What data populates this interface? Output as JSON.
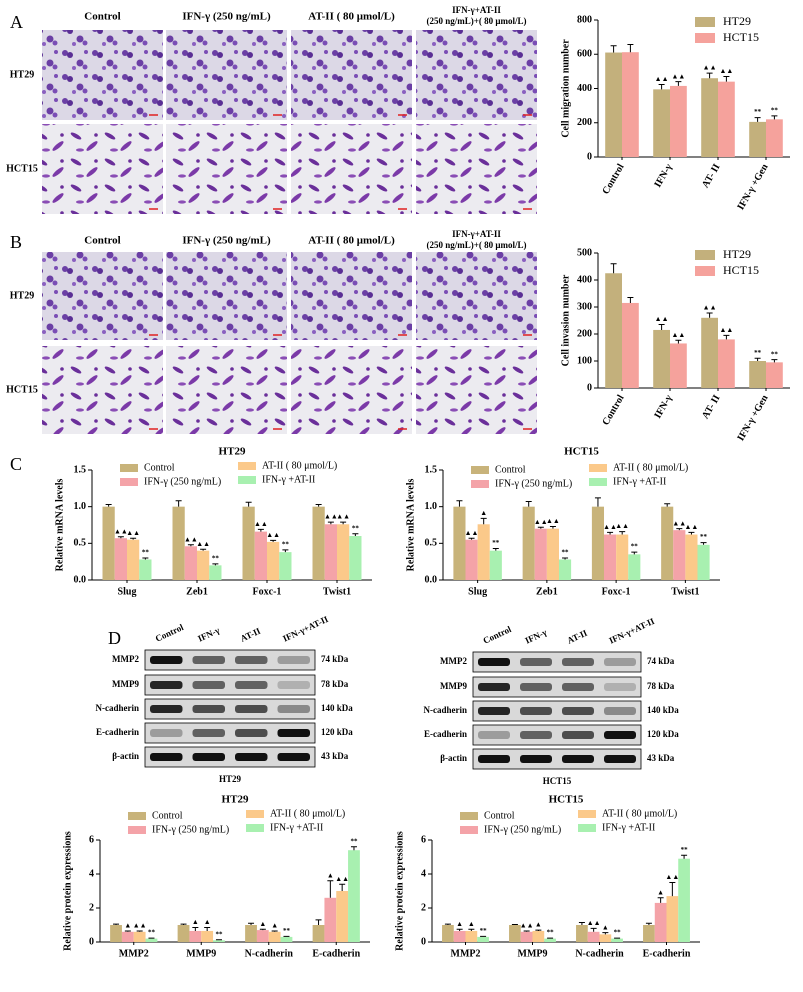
{
  "chart_data": [
    {
      "type": "bar",
      "ylabel": "Cell migration number",
      "categories": [
        "Control",
        "IFN-γ",
        "AT- II",
        "IFN-γ +Gen"
      ],
      "series": [
        {
          "name": "HT29",
          "color": "#c3b07c",
          "values": [
            610,
            395,
            460,
            205
          ],
          "errors": [
            40,
            28,
            30,
            25
          ],
          "annotations": [
            null,
            "▲▲",
            "▲▲",
            "**"
          ]
        },
        {
          "name": "HCT15",
          "color": "#f5a29c",
          "values": [
            612,
            415,
            440,
            220
          ],
          "errors": [
            45,
            25,
            30,
            20
          ],
          "annotations": [
            null,
            "▲▲",
            "▲▲",
            "**"
          ]
        }
      ],
      "ylim": [
        0,
        800
      ],
      "yticks": [
        0,
        200,
        400,
        600,
        800
      ],
      "legend": "upper right"
    },
    {
      "type": "bar",
      "ylabel": "Cell invasion number",
      "categories": [
        "Control",
        "IFN-γ",
        "AT- II",
        "IFN-γ +Gen"
      ],
      "series": [
        {
          "name": "HT29",
          "color": "#c3b07c",
          "values": [
            425,
            215,
            260,
            100
          ],
          "errors": [
            35,
            20,
            18,
            10
          ],
          "annotations": [
            null,
            "▲▲",
            "▲▲",
            "**"
          ]
        },
        {
          "name": "HCT15",
          "color": "#f5a29c",
          "values": [
            315,
            165,
            180,
            95
          ],
          "errors": [
            20,
            12,
            15,
            10
          ],
          "annotations": [
            null,
            "▲▲",
            "▲▲",
            "**"
          ]
        }
      ],
      "ylim": [
        0,
        500
      ],
      "yticks": [
        0,
        100,
        200,
        300,
        400,
        500
      ],
      "legend": "upper right"
    },
    {
      "type": "bar",
      "title": "HT29",
      "ylabel": "Relative mRNA levels",
      "categories": [
        "Slug",
        "Zeb1",
        "Foxc-1",
        "Twist1"
      ],
      "series": [
        {
          "name": "Control",
          "color": "#c8b37a",
          "values": [
            1,
            1,
            1,
            1
          ],
          "errors": [
            0.03,
            0.08,
            0.06,
            0.03
          ],
          "annotations": [
            null,
            null,
            null,
            null
          ]
        },
        {
          "name": "IFN-γ  (250 ng/mL)",
          "color": "#f4a3a8",
          "values": [
            0.57,
            0.46,
            0.66,
            0.76
          ],
          "errors": [
            0.02,
            0.02,
            0.03,
            0.03
          ],
          "annotations": [
            "▲▲",
            "▲▲",
            "▲▲",
            "▲▲"
          ]
        },
        {
          "name": "AT-II ( 80  μmol/L)",
          "color": "#fbc98a",
          "values": [
            0.55,
            0.4,
            0.52,
            0.76
          ],
          "errors": [
            0.02,
            0.02,
            0.02,
            0.03
          ],
          "annotations": [
            "▲▲",
            "▲▲",
            "▲▲",
            "▲▲"
          ]
        },
        {
          "name": "IFN-γ +AT-II",
          "color": "#a8f0b0",
          "values": [
            0.28,
            0.2,
            0.38,
            0.6
          ],
          "errors": [
            0.02,
            0.02,
            0.03,
            0.03
          ],
          "annotations": [
            "**",
            "**",
            "**",
            "**"
          ]
        }
      ],
      "ylim": [
        0,
        1.5
      ],
      "yticks": [
        {
          "value": 0,
          "label": "0.0"
        },
        0.5,
        {
          "value": 1,
          "label": "1.0"
        },
        1.5
      ],
      "legend": "top"
    },
    {
      "type": "bar",
      "title": "HCT15",
      "ylabel": "Relative mRNA levels",
      "categories": [
        "Slug",
        "Zeb1",
        "Foxc-1",
        "Twist1"
      ],
      "series": [
        {
          "name": "Control",
          "color": "#c8b37a",
          "values": [
            1,
            1,
            1,
            1
          ],
          "errors": [
            0.08,
            0.07,
            0.12,
            0.04
          ],
          "annotations": [
            null,
            null,
            null,
            null
          ]
        },
        {
          "name": "IFN-γ  (250 ng/mL)",
          "color": "#f4a3a8",
          "values": [
            0.55,
            0.7,
            0.62,
            0.68
          ],
          "errors": [
            0.02,
            0.02,
            0.03,
            0.02
          ],
          "annotations": [
            "▲▲",
            "▲▲",
            "▲▲",
            "▲▲"
          ]
        },
        {
          "name": "AT-II ( 80  μmol/L)",
          "color": "#fbc98a",
          "values": [
            0.76,
            0.7,
            0.62,
            0.62
          ],
          "errors": [
            0.08,
            0.03,
            0.04,
            0.03
          ],
          "annotations": [
            "▲",
            "▲▲",
            "▲▲",
            "▲▲"
          ]
        },
        {
          "name": "IFN-γ +AT-II",
          "color": "#a8f0b0",
          "values": [
            0.4,
            0.28,
            0.35,
            0.48
          ],
          "errors": [
            0.03,
            0.02,
            0.03,
            0.03
          ],
          "annotations": [
            "**",
            "**",
            "**",
            "**"
          ]
        }
      ],
      "ylim": [
        0,
        1.5
      ],
      "yticks": [
        {
          "value": 0,
          "label": "0.0"
        },
        0.5,
        {
          "value": 1,
          "label": "1.0"
        },
        1.5
      ],
      "legend": "top"
    },
    {
      "type": "bar",
      "title": "HT29",
      "ylabel": "Relative protein expressions",
      "categories": [
        "MMP2",
        "MMP9",
        "N-cadherin",
        "E-cadherin"
      ],
      "series": [
        {
          "name": "Control",
          "color": "#c8b37a",
          "values": [
            1,
            1,
            1,
            1
          ],
          "errors": [
            0.05,
            0.05,
            0.1,
            0.3
          ],
          "annotations": [
            null,
            null,
            null,
            null
          ]
        },
        {
          "name": "IFN-γ  (250 ng/mL)",
          "color": "#f4a3a8",
          "values": [
            0.6,
            0.65,
            0.7,
            2.6
          ],
          "errors": [
            0.05,
            0.2,
            0.05,
            1.0
          ],
          "annotations": [
            "▲",
            "▲",
            "▲",
            "▲"
          ]
        },
        {
          "name": "AT-II ( 80  μmol/L)",
          "color": "#fbc98a",
          "values": [
            0.6,
            0.65,
            0.6,
            3.0
          ],
          "errors": [
            0.05,
            0.2,
            0.05,
            0.4
          ],
          "annotations": [
            "▲▲",
            "▲",
            "▲",
            "▲▲"
          ]
        },
        {
          "name": "IFN-γ +AT-II",
          "color": "#a8f0b0",
          "values": [
            0.2,
            0.1,
            0.3,
            5.4
          ],
          "errors": [
            0.03,
            0.03,
            0.03,
            0.2
          ],
          "annotations": [
            "**",
            "**",
            "**",
            "**"
          ]
        }
      ],
      "ylim": [
        0,
        6
      ],
      "yticks": [
        0,
        2,
        4,
        6
      ],
      "legend": "top"
    },
    {
      "type": "bar",
      "title": "HCT15",
      "ylabel": "Relative protein expressions",
      "categories": [
        "MMP2",
        "MMP9",
        "N-cadherin",
        "E-cadherin"
      ],
      "series": [
        {
          "name": "Control",
          "color": "#c8b37a",
          "values": [
            1,
            1,
            1,
            1
          ],
          "errors": [
            0.05,
            0.03,
            0.15,
            0.1
          ],
          "annotations": [
            null,
            null,
            null,
            null
          ]
        },
        {
          "name": "IFN-γ  (250 ng/mL)",
          "color": "#f4a3a8",
          "values": [
            0.65,
            0.6,
            0.6,
            2.3
          ],
          "errors": [
            0.1,
            0.05,
            0.2,
            0.3
          ],
          "annotations": [
            "▲",
            "▲▲",
            "▲▲",
            "▲"
          ]
        },
        {
          "name": "AT-II ( 80  μmol/L)",
          "color": "#fbc98a",
          "values": [
            0.65,
            0.65,
            0.45,
            2.7
          ],
          "errors": [
            0.1,
            0.05,
            0.1,
            0.8
          ],
          "annotations": [
            "▲",
            "▲",
            "▲",
            "▲▲"
          ]
        },
        {
          "name": "IFN-γ +AT-II",
          "color": "#a8f0b0",
          "values": [
            0.3,
            0.2,
            0.2,
            4.9
          ],
          "errors": [
            0.03,
            0.03,
            0.03,
            0.2
          ],
          "annotations": [
            "**",
            "**",
            "**",
            "**"
          ]
        }
      ],
      "ylim": [
        0,
        6
      ],
      "yticks": [
        0,
        2,
        4,
        6
      ],
      "legend": "top"
    }
  ],
  "figure": {
    "panel_labels": [
      "A",
      "B",
      "C",
      "D"
    ],
    "migration": {
      "columns": [
        [
          "Control"
        ],
        [
          "IFN-γ (250 ng/mL)"
        ],
        [
          "AT-II ( 80  μmol/L)"
        ],
        [
          "IFN-γ+AT-II",
          "(250 ng/mL)+( 80  μmol/L)"
        ]
      ],
      "rows": [
        "HT29",
        "HCT15"
      ]
    },
    "invasion": {
      "columns": [
        [
          "Control"
        ],
        [
          "IFN-γ (250 ng/mL)"
        ],
        [
          "AT-II ( 80  μmol/L)"
        ],
        [
          "IFN-γ+AT-II",
          "(250 ng/mL)+( 80  μmol/L)"
        ]
      ],
      "rows": [
        "HT29",
        "HCT15"
      ]
    },
    "blots": [
      {
        "cell_line": "HT29",
        "lanes": [
          "Control",
          "IFN-γ",
          "AT-II",
          "IFN-γ+AT-II"
        ],
        "proteins": [
          "MMP2",
          "MMP9",
          "N-cadherin",
          "E-cadherin",
          "β-actin"
        ],
        "sizes": [
          "74 kDa",
          "78 kDa",
          "140 kDa",
          "120 kDa",
          "43 kDa"
        ]
      },
      {
        "cell_line": "HCT15",
        "lanes": [
          "Control",
          "IFN-γ",
          "AT-II",
          "IFN-γ+AT-II"
        ],
        "proteins": [
          "MMP2",
          "MMP9",
          "N-cadherin",
          "E-cadherin",
          "β-actin"
        ],
        "sizes": [
          "74 kDa",
          "78 kDa",
          "140 kDa",
          "120 kDa",
          "43 kDa"
        ]
      }
    ]
  }
}
